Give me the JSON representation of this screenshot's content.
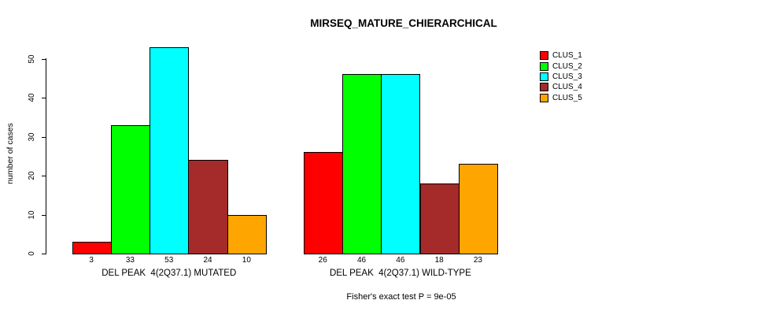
{
  "chart_data": {
    "type": "bar",
    "title": "MIRSEQ_MATURE_CHIERARCHICAL",
    "ylabel": "number of cases",
    "ylim": [
      0,
      50
    ],
    "yticks": [
      0,
      10,
      20,
      30,
      40,
      50
    ],
    "grid": false,
    "legend_position": "right",
    "series_names": [
      "CLUS_1",
      "CLUS_2",
      "CLUS_3",
      "CLUS_4",
      "CLUS_5"
    ],
    "colors": [
      "#FF0000",
      "#00FF00",
      "#00FFFF",
      "#A52A2A",
      "#FFA500"
    ],
    "groups": [
      {
        "label": "DEL PEAK  4(2Q37.1) MUTATED",
        "values": [
          3,
          33,
          53,
          24,
          10
        ]
      },
      {
        "label": "DEL PEAK  4(2Q37.1) WILD-TYPE",
        "values": [
          26,
          46,
          46,
          18,
          23
        ]
      }
    ],
    "footnote": "Fisher's exact test P = 9e-05"
  }
}
